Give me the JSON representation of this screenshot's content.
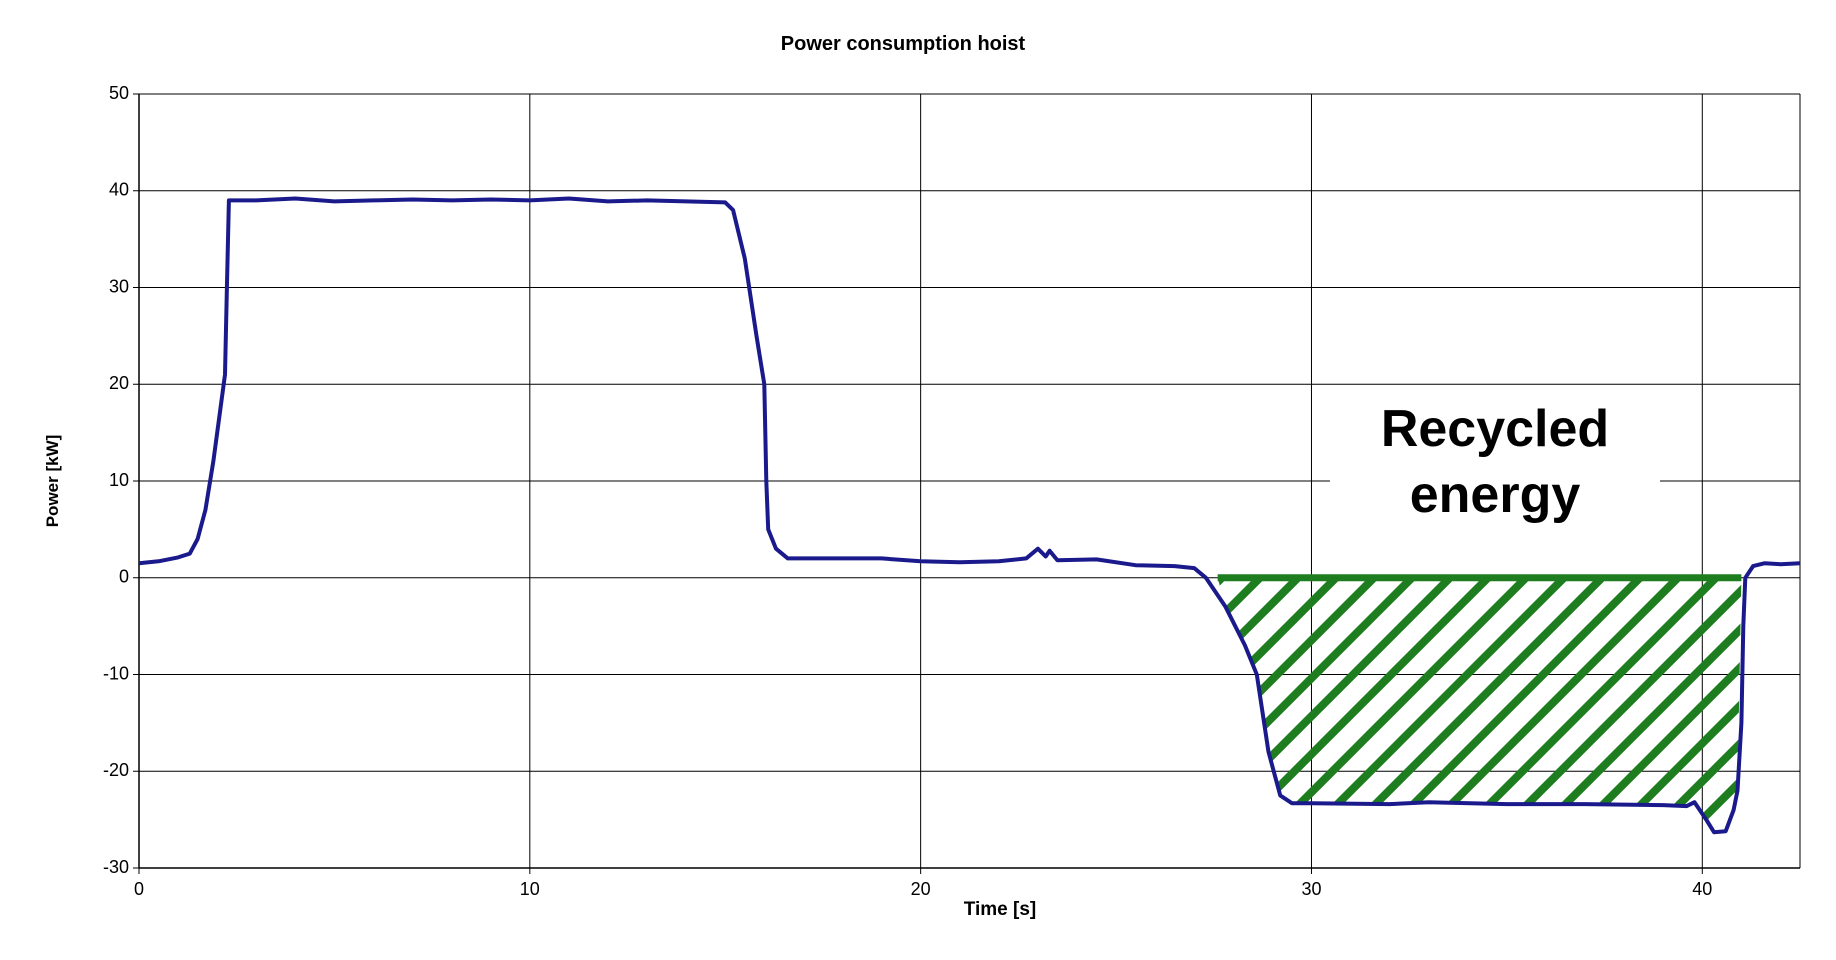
{
  "chart_data": {
    "type": "line",
    "title": "Power consumption hoist",
    "x_label": "Time [s]",
    "y_label": "Power [kW]",
    "annotation": "Recycled energy",
    "xlim": [
      0,
      42.5
    ],
    "ylim": [
      -30,
      50
    ],
    "xticks": [
      0,
      10,
      20,
      30,
      40
    ],
    "yticks": [
      -30,
      -20,
      -10,
      0,
      10,
      20,
      30,
      40,
      50
    ],
    "grid": true,
    "region": {
      "x": [
        27.6,
        41.0
      ],
      "y": 0,
      "color": "#1e7d1e"
    },
    "x": [
      0,
      0.5,
      1,
      1.3,
      1.5,
      1.7,
      1.9,
      2.1,
      2.2,
      2.25,
      2.3,
      3,
      4,
      5,
      6,
      7,
      8,
      9,
      10,
      11,
      12,
      13,
      14,
      15,
      15.2,
      15.5,
      15.8,
      16,
      16.05,
      16.1,
      16.3,
      16.6,
      17,
      19,
      20,
      21,
      22,
      22.7,
      23,
      23.2,
      23.3,
      23.5,
      24.5,
      25.5,
      26.5,
      27,
      27.3,
      27.8,
      28.3,
      28.6,
      28.9,
      29.2,
      29.5,
      30,
      32,
      33,
      35,
      37,
      39,
      39.6,
      39.8,
      40.1,
      40.3,
      40.6,
      40.8,
      40.9,
      41,
      41.05,
      41.1,
      41.3,
      41.6,
      42,
      42.5
    ],
    "series": [
      {
        "name": "Power",
        "color": "#1a1a8c",
        "values": [
          1.5,
          1.7,
          2.1,
          2.5,
          4,
          7,
          12,
          18,
          21,
          30,
          39,
          39,
          39.2,
          38.9,
          39,
          39.1,
          39,
          39.1,
          39,
          39.2,
          38.9,
          39,
          38.9,
          38.8,
          38,
          33,
          25,
          20,
          10,
          5,
          3,
          2,
          2,
          2,
          1.7,
          1.6,
          1.7,
          2,
          3,
          2.2,
          2.8,
          1.8,
          1.9,
          1.3,
          1.2,
          1,
          0,
          -3,
          -7,
          -10,
          -18,
          -22.5,
          -23.3,
          -23.3,
          -23.4,
          -23.2,
          -23.4,
          -23.4,
          -23.5,
          -23.6,
          -23.2,
          -25,
          -26.3,
          -26.2,
          -24,
          -22,
          -15,
          -5,
          0,
          1.2,
          1.5,
          1.4,
          1.5
        ]
      }
    ]
  }
}
